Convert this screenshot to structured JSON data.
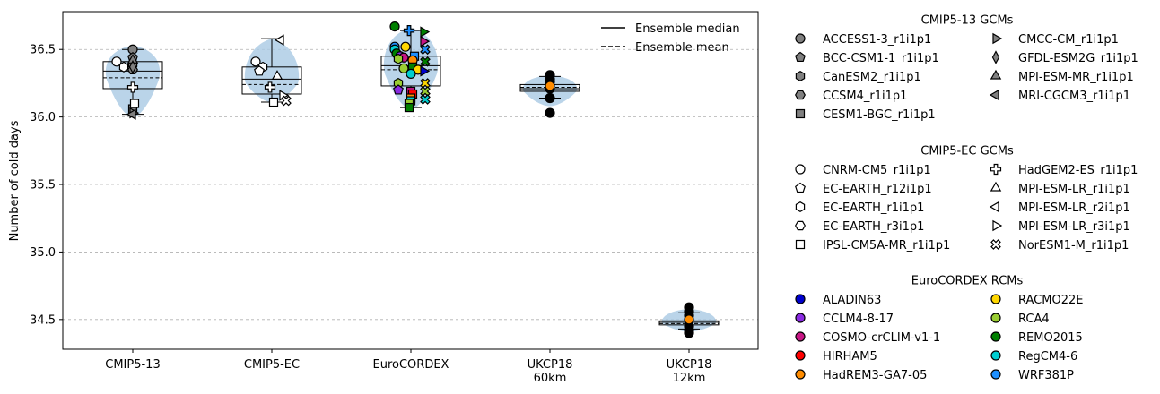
{
  "chart_data": {
    "type": "box",
    "ylabel": "Number of cold days",
    "ylim": [
      34.28,
      36.78
    ],
    "yticks": [
      "34.5",
      "35.0",
      "35.5",
      "36.0",
      "36.5"
    ],
    "grid": "horizontal dashed",
    "categories": [
      {
        "label": [
          "CMIP5-13"
        ],
        "median": 36.34,
        "mean": 36.29,
        "q1": 36.21,
        "q3": 36.41,
        "whisker_low": 36.02,
        "whisker_high": 36.5,
        "violin_low": 36.0,
        "violin_high": 36.53
      },
      {
        "label": [
          "CMIP5-EC"
        ],
        "median": 36.28,
        "mean": 36.24,
        "q1": 36.17,
        "q3": 36.37,
        "whisker_low": 36.11,
        "whisker_high": 36.58,
        "violin_low": 36.11,
        "violin_high": 36.58
      },
      {
        "label": [
          "EuroCORDEX"
        ],
        "median": 36.38,
        "mean": 36.35,
        "q1": 36.23,
        "q3": 36.45,
        "whisker_low": 36.07,
        "whisker_high": 36.64,
        "violin_low": 36.06,
        "violin_high": 36.66
      },
      {
        "label": [
          "UKCP18",
          "60km"
        ],
        "median": 36.21,
        "mean": 36.22,
        "q1": 36.19,
        "q3": 36.24,
        "whisker_low": 36.14,
        "whisker_high": 36.3,
        "violin_low": 36.08,
        "violin_high": 36.31
      },
      {
        "label": [
          "UKCP18",
          "12km"
        ],
        "median": 34.48,
        "mean": 34.47,
        "q1": 34.46,
        "q3": 34.49,
        "whisker_low": 34.43,
        "whisker_high": 34.55,
        "violin_low": 34.41,
        "violin_high": 34.58
      }
    ],
    "legend_lines": [
      {
        "label": "Ensemble median",
        "style": "solid"
      },
      {
        "label": "Ensemble mean",
        "style": "dashed"
      }
    ],
    "legend_groups": [
      {
        "title": "CMIP5-13 GCMs",
        "items": [
          {
            "label": "ACCESS1-3_r1i1p1",
            "marker": "circle",
            "color": "#808080"
          },
          {
            "label": "BCC-CSM1-1_r1i1p1",
            "marker": "pentagon",
            "color": "#808080"
          },
          {
            "label": "CanESM2_r1i1p1",
            "marker": "hexagon",
            "color": "#808080"
          },
          {
            "label": "CCSM4_r1i1p1",
            "marker": "hexagon2",
            "color": "#808080"
          },
          {
            "label": "CESM1-BGC_r1i1p1",
            "marker": "square",
            "color": "#808080"
          },
          {
            "label": "CMCC-CM_r1i1p1",
            "marker": "tri-right",
            "color": "#808080"
          },
          {
            "label": "GFDL-ESM2G_r1i1p1",
            "marker": "thin-diamond",
            "color": "#808080"
          },
          {
            "label": "MPI-ESM-MR_r1i1p1",
            "marker": "tri-up",
            "color": "#808080"
          },
          {
            "label": "MRI-CGCM3_r1i1p1",
            "marker": "tri-left",
            "color": "#808080"
          }
        ]
      },
      {
        "title": "CMIP5-EC GCMs",
        "items": [
          {
            "label": "CNRM-CM5_r1i1p1",
            "marker": "circle",
            "color": "#ffffff"
          },
          {
            "label": "EC-EARTH_r12i1p1",
            "marker": "pentagon",
            "color": "#ffffff"
          },
          {
            "label": "EC-EARTH_r1i1p1",
            "marker": "hexagon",
            "color": "#ffffff"
          },
          {
            "label": "EC-EARTH_r3i1p1",
            "marker": "hexagon2",
            "color": "#ffffff"
          },
          {
            "label": "IPSL-CM5A-MR_r1i1p1",
            "marker": "square",
            "color": "#ffffff"
          },
          {
            "label": "HadGEM2-ES_r1i1p1",
            "marker": "plus",
            "color": "#ffffff"
          },
          {
            "label": "MPI-ESM-LR_r1i1p1",
            "marker": "tri-up",
            "color": "#ffffff"
          },
          {
            "label": "MPI-ESM-LR_r2i1p1",
            "marker": "tri-left",
            "color": "#ffffff"
          },
          {
            "label": "MPI-ESM-LR_r3i1p1",
            "marker": "tri-right",
            "color": "#ffffff"
          },
          {
            "label": "NorESM1-M_r1i1p1",
            "marker": "x",
            "color": "#ffffff"
          }
        ]
      },
      {
        "title": "EuroCORDEX RCMs",
        "items": [
          {
            "label": "ALADIN63",
            "marker": "circle",
            "color": "#0000cd"
          },
          {
            "label": "CCLM4-8-17",
            "marker": "circle",
            "color": "#8a2be2"
          },
          {
            "label": "COSMO-crCLIM-v1-1",
            "marker": "circle",
            "color": "#c71585"
          },
          {
            "label": "HIRHAM5",
            "marker": "circle",
            "color": "#ff0000"
          },
          {
            "label": "HadREM3-GA7-05",
            "marker": "circle",
            "color": "#ff8c00"
          },
          {
            "label": "RACMO22E",
            "marker": "circle",
            "color": "#ffd700"
          },
          {
            "label": "RCA4",
            "marker": "circle",
            "color": "#9acd32"
          },
          {
            "label": "REMO2015",
            "marker": "circle",
            "color": "#008000"
          },
          {
            "label": "RegCM4-6",
            "marker": "circle",
            "color": "#00ced1"
          },
          {
            "label": "WRF381P",
            "marker": "circle",
            "color": "#1e90ff"
          }
        ]
      }
    ],
    "points": [
      {
        "cat": 0,
        "marker": "circle",
        "color": "#808080",
        "y": 36.5,
        "dx": 0
      },
      {
        "cat": 0,
        "marker": "pentagon",
        "color": "#808080",
        "y": 36.44,
        "dx": 0
      },
      {
        "cat": 0,
        "marker": "hexagon",
        "color": "#808080",
        "y": 36.39,
        "dx": 0
      },
      {
        "cat": 0,
        "marker": "hexagon2",
        "color": "#808080",
        "y": 36.35,
        "dx": 0
      },
      {
        "cat": 0,
        "marker": "tri-up",
        "color": "#808080",
        "y": 36.42,
        "dx": 0
      },
      {
        "cat": 0,
        "marker": "thin-diamond",
        "color": "#808080",
        "y": 36.37,
        "dx": 0
      },
      {
        "cat": 0,
        "marker": "square",
        "color": "#808080",
        "y": 36.06,
        "dx": 0
      },
      {
        "cat": 0,
        "marker": "tri-right",
        "color": "#808080",
        "y": 36.03,
        "dx": 0
      },
      {
        "cat": 0,
        "marker": "tri-left",
        "color": "#808080",
        "y": 36.02,
        "dx": 0
      },
      {
        "cat": 0,
        "marker": "circle",
        "color": "#ffffff",
        "y": 36.41,
        "dx": -18
      },
      {
        "cat": 0,
        "marker": "hexagon",
        "color": "#ffffff",
        "y": 36.37,
        "dx": -10
      },
      {
        "cat": 0,
        "marker": "plus",
        "color": "#ffffff",
        "y": 36.22,
        "dx": 0
      },
      {
        "cat": 0,
        "marker": "square",
        "color": "#ffffff",
        "y": 36.1,
        "dx": 2
      },
      {
        "cat": 1,
        "marker": "circle",
        "color": "#ffffff",
        "y": 36.41,
        "dx": -18
      },
      {
        "cat": 1,
        "marker": "hexagon",
        "color": "#ffffff",
        "y": 36.37,
        "dx": -10
      },
      {
        "cat": 1,
        "marker": "pentagon",
        "color": "#ffffff",
        "y": 36.34,
        "dx": -14
      },
      {
        "cat": 1,
        "marker": "tri-left",
        "color": "#ffffff",
        "y": 36.57,
        "dx": 10
      },
      {
        "cat": 1,
        "marker": "tri-up",
        "color": "#ffffff",
        "y": 36.3,
        "dx": 6
      },
      {
        "cat": 1,
        "marker": "plus",
        "color": "#ffffff",
        "y": 36.22,
        "dx": -2
      },
      {
        "cat": 1,
        "marker": "tri-right",
        "color": "#ffffff",
        "y": 36.16,
        "dx": 12
      },
      {
        "cat": 1,
        "marker": "x",
        "color": "#ffffff",
        "y": 36.12,
        "dx": 16
      },
      {
        "cat": 1,
        "marker": "square",
        "color": "#ffffff",
        "y": 36.11,
        "dx": 2
      },
      {
        "cat": 2,
        "marker": "circle",
        "color": "#008000",
        "y": 36.67,
        "dx": -18
      },
      {
        "cat": 2,
        "marker": "plus",
        "color": "#1e90ff",
        "y": 36.64,
        "dx": -2
      },
      {
        "cat": 2,
        "marker": "tri-right",
        "color": "#008000",
        "y": 36.63,
        "dx": 14
      },
      {
        "cat": 2,
        "marker": "tri-right",
        "color": "#c71585",
        "y": 36.56,
        "dx": 14
      },
      {
        "cat": 2,
        "marker": "circle",
        "color": "#1e90ff",
        "y": 36.52,
        "dx": -18
      },
      {
        "cat": 2,
        "marker": "circle",
        "color": "#ffd700",
        "y": 36.52,
        "dx": -6
      },
      {
        "cat": 2,
        "marker": "circle",
        "color": "#00ced1",
        "y": 36.5,
        "dx": -18
      },
      {
        "cat": 2,
        "marker": "x",
        "color": "#1e90ff",
        "y": 36.5,
        "dx": 16
      },
      {
        "cat": 2,
        "marker": "circle",
        "color": "#008000",
        "y": 36.47,
        "dx": -16
      },
      {
        "cat": 2,
        "marker": "circle",
        "color": "#8a2be2",
        "y": 36.45,
        "dx": -12
      },
      {
        "cat": 2,
        "marker": "circle",
        "color": "#c71585",
        "y": 36.44,
        "dx": -8
      },
      {
        "cat": 2,
        "marker": "hexagon",
        "color": "#9acd32",
        "y": 36.43,
        "dx": -14
      },
      {
        "cat": 2,
        "marker": "square",
        "color": "#1e90ff",
        "y": 36.45,
        "dx": 4
      },
      {
        "cat": 2,
        "marker": "circle",
        "color": "#ff8c00",
        "y": 36.42,
        "dx": 2
      },
      {
        "cat": 2,
        "marker": "x",
        "color": "#008000",
        "y": 36.41,
        "dx": 16
      },
      {
        "cat": 2,
        "marker": "circle",
        "color": "#9acd32",
        "y": 36.36,
        "dx": -8
      },
      {
        "cat": 2,
        "marker": "square",
        "color": "#008000",
        "y": 36.37,
        "dx": 2
      },
      {
        "cat": 2,
        "marker": "circle",
        "color": "#ffd700",
        "y": 36.35,
        "dx": 8
      },
      {
        "cat": 2,
        "marker": "tri-right",
        "color": "#0000cd",
        "y": 36.34,
        "dx": 14
      },
      {
        "cat": 2,
        "marker": "circle",
        "color": "#00ced1",
        "y": 36.32,
        "dx": 0
      },
      {
        "cat": 2,
        "marker": "hexagon",
        "color": "#9acd32",
        "y": 36.25,
        "dx": -14
      },
      {
        "cat": 2,
        "marker": "x",
        "color": "#ffd700",
        "y": 36.25,
        "dx": 16
      },
      {
        "cat": 2,
        "marker": "pentagon",
        "color": "#8a2be2",
        "y": 36.2,
        "dx": -14
      },
      {
        "cat": 2,
        "marker": "square",
        "color": "#c71585",
        "y": 36.19,
        "dx": 0
      },
      {
        "cat": 2,
        "marker": "square",
        "color": "#ff0000",
        "y": 36.17,
        "dx": 2
      },
      {
        "cat": 2,
        "marker": "x",
        "color": "#9acd32",
        "y": 36.19,
        "dx": 16
      },
      {
        "cat": 2,
        "marker": "square",
        "color": "#ff8c00",
        "y": 36.14,
        "dx": 0
      },
      {
        "cat": 2,
        "marker": "square",
        "color": "#00ced1",
        "y": 36.12,
        "dx": 0
      },
      {
        "cat": 2,
        "marker": "x",
        "color": "#00ced1",
        "y": 36.13,
        "dx": 16
      },
      {
        "cat": 2,
        "marker": "square",
        "color": "#9acd32",
        "y": 36.1,
        "dx": -2
      },
      {
        "cat": 2,
        "marker": "square",
        "color": "#008000",
        "y": 36.07,
        "dx": -2
      },
      {
        "cat": 3,
        "marker": "circle",
        "color": "#000000",
        "y": 36.31,
        "dx": 0
      },
      {
        "cat": 3,
        "marker": "circle",
        "color": "#000000",
        "y": 36.28,
        "dx": 0
      },
      {
        "cat": 3,
        "marker": "circle",
        "color": "#000000",
        "y": 36.26,
        "dx": 0
      },
      {
        "cat": 3,
        "marker": "circle",
        "color": "#000000",
        "y": 36.21,
        "dx": 0
      },
      {
        "cat": 3,
        "marker": "circle",
        "color": "#000000",
        "y": 36.14,
        "dx": 0
      },
      {
        "cat": 3,
        "marker": "circle",
        "color": "#000000",
        "y": 36.03,
        "dx": 0
      },
      {
        "cat": 3,
        "marker": "circle",
        "color": "#ff8c00",
        "y": 36.23,
        "dx": 0
      },
      {
        "cat": 4,
        "marker": "circle",
        "color": "#000000",
        "y": 34.59,
        "dx": 0
      },
      {
        "cat": 4,
        "marker": "circle",
        "color": "#000000",
        "y": 34.56,
        "dx": 0
      },
      {
        "cat": 4,
        "marker": "circle",
        "color": "#000000",
        "y": 34.53,
        "dx": 0
      },
      {
        "cat": 4,
        "marker": "circle",
        "color": "#000000",
        "y": 34.45,
        "dx": 0
      },
      {
        "cat": 4,
        "marker": "circle",
        "color": "#000000",
        "y": 34.42,
        "dx": 0
      },
      {
        "cat": 4,
        "marker": "circle",
        "color": "#000000",
        "y": 34.4,
        "dx": 0
      },
      {
        "cat": 4,
        "marker": "circle",
        "color": "#ff8c00",
        "y": 34.5,
        "dx": 0
      }
    ]
  }
}
